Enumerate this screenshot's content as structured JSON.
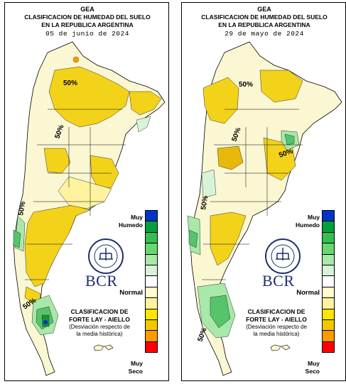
{
  "panels": [
    {
      "org": "GEA",
      "title_line1": "CLASIFICACION DE HUMEDAD DEL SUELO",
      "title_line2": "EN LA REPUBLICA ARGENTINA",
      "date": "05 de junio de 2024"
    },
    {
      "org": "GEA",
      "title_line1": "CLASIFICACION DE HUMEDAD DEL SUELO",
      "title_line2": "EN LA REPUBLICA ARGENTINA",
      "date": "29 de mayo de 2024"
    }
  ],
  "contour_label": "50%",
  "legend": {
    "top_label": "Muy\nHumedo",
    "mid_label": "Normal",
    "bottom_label": "Muy\nSeco",
    "colors": [
      "#0033cc",
      "#00a040",
      "#33c050",
      "#66d870",
      "#a8e8a8",
      "#d8f4d8",
      "#ffffff",
      "#fffbcc",
      "#fff3a0",
      "#ffe600",
      "#f0c800",
      "#ff9900",
      "#ff0000"
    ]
  },
  "logo": {
    "text": "BCR",
    "seal_text": "BOLSA DE COMERCIO DE ROSARIO"
  },
  "classification": {
    "line1": "CLASIFICACION DE",
    "line2": "FORTE LAY - AIELLO",
    "line3": "(Desviación respecto de",
    "line4": "la media histórica)"
  },
  "colors": {
    "wet_dark": "#1d8f3a",
    "wet_mid": "#55c46a",
    "wet_light": "#bfe9c0",
    "normal_light": "#fbf7d2",
    "dry_light": "#fff0a0",
    "dry": "#f3d21a",
    "dry_strong": "#e8b90a",
    "outline": "#000000"
  }
}
